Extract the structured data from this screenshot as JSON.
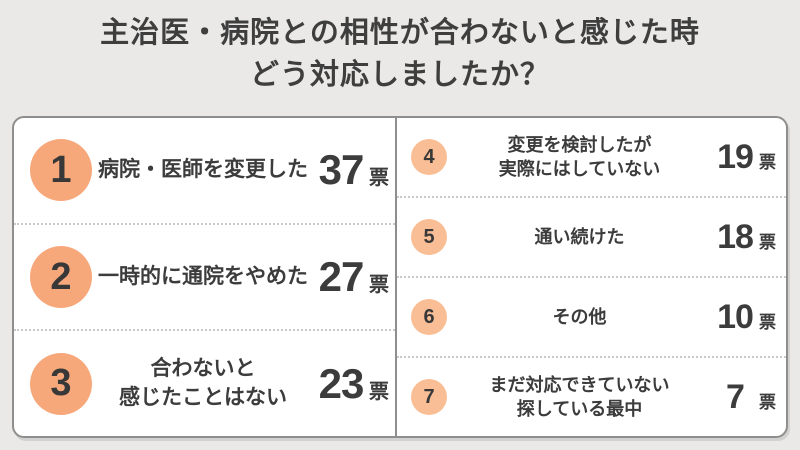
{
  "title": {
    "line1": "主治医・病院との相性が合わないと感じた時",
    "line2": "どう対応しましたか？"
  },
  "colors": {
    "page_background": "#EAE9E7",
    "card_background": "#FFFFFF",
    "card_border": "#8E8E8E",
    "dotted_divider": "#C9C9C9",
    "badge_large": "#F7A87B",
    "badge_small": "#F9BE96",
    "text": "#3C3C3C"
  },
  "ranking": {
    "unit": "票",
    "left": [
      {
        "rank": "1",
        "label": "病院・医師を変更した",
        "votes": "37"
      },
      {
        "rank": "2",
        "label": "一時的に通院をやめた",
        "votes": "27"
      },
      {
        "rank": "3",
        "label": "合わないと\n感じたことはない",
        "votes": "23"
      }
    ],
    "right": [
      {
        "rank": "4",
        "label": "変更を検討したが\n実際にはしていない",
        "votes": "19"
      },
      {
        "rank": "5",
        "label": "通い続けた",
        "votes": "18"
      },
      {
        "rank": "6",
        "label": "その他",
        "votes": "10"
      },
      {
        "rank": "7",
        "label": "まだ対応できていない\n探している最中",
        "votes": "7"
      }
    ]
  },
  "chart_data": {
    "type": "table",
    "title": "主治医・病院との相性が合わないと感じた時どう対応しましたか？",
    "categories": [
      "病院・医師を変更した",
      "一時的に通院をやめた",
      "合わないと感じたことはない",
      "変更を検討したが実際にはしていない",
      "通い続けた",
      "その他",
      "まだ対応できていない探している最中"
    ],
    "values": [
      37,
      27,
      23,
      19,
      18,
      10,
      7
    ],
    "ranks": [
      1,
      2,
      3,
      4,
      5,
      6,
      7
    ],
    "unit": "票",
    "layout": "two-column ranked list, ranks 1-3 left with large badges, ranks 4-7 right with small badges"
  }
}
